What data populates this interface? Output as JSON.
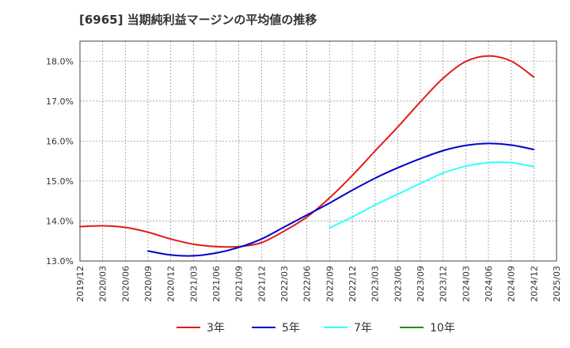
{
  "chart_data": {
    "type": "line",
    "title": "[6965]  当期純利益マージンの平均値の推移",
    "xlabel": "",
    "ylabel": "",
    "ylim": [
      13.0,
      18.5
    ],
    "y_ticks": [
      "13.0%",
      "14.0%",
      "15.0%",
      "16.0%",
      "17.0%",
      "18.0%"
    ],
    "y_tick_values": [
      13.0,
      14.0,
      15.0,
      16.0,
      17.0,
      18.0
    ],
    "x_ticks": [
      "2019/12",
      "2020/03",
      "2020/06",
      "2020/09",
      "2020/12",
      "2021/03",
      "2021/06",
      "2021/09",
      "2021/12",
      "2022/03",
      "2022/06",
      "2022/09",
      "2022/12",
      "2023/03",
      "2023/06",
      "2023/09",
      "2023/12",
      "2024/03",
      "2024/06",
      "2024/09",
      "2024/12",
      "2025/03"
    ],
    "grid": true,
    "legend_position": "bottom",
    "colors": {
      "3年": "#e31a1c",
      "5年": "#0000cc",
      "7年": "#33ffff",
      "10年": "#228b22"
    },
    "series": [
      {
        "name": "3年",
        "color": "#e31a1c",
        "x": [
          "2019/12",
          "2020/03",
          "2020/06",
          "2020/09",
          "2020/12",
          "2021/03",
          "2021/06",
          "2021/09",
          "2021/12",
          "2022/03",
          "2022/06",
          "2022/09",
          "2022/12",
          "2023/03",
          "2023/06",
          "2023/09",
          "2023/12",
          "2024/03",
          "2024/06",
          "2024/09",
          "2024/12"
        ],
        "values": [
          13.86,
          13.88,
          13.84,
          13.72,
          13.55,
          13.42,
          13.36,
          13.36,
          13.46,
          13.75,
          14.1,
          14.58,
          15.14,
          15.75,
          16.35,
          16.98,
          17.57,
          17.99,
          18.13,
          18.0,
          17.6
        ]
      },
      {
        "name": "5年",
        "color": "#0000cc",
        "x": [
          "2020/09",
          "2020/12",
          "2021/03",
          "2021/06",
          "2021/09",
          "2021/12",
          "2022/03",
          "2022/06",
          "2022/09",
          "2022/12",
          "2023/03",
          "2023/06",
          "2023/09",
          "2023/12",
          "2024/03",
          "2024/06",
          "2024/09",
          "2024/12"
        ],
        "values": [
          13.25,
          13.15,
          13.13,
          13.2,
          13.34,
          13.55,
          13.85,
          14.15,
          14.45,
          14.77,
          15.07,
          15.33,
          15.56,
          15.76,
          15.89,
          15.94,
          15.9,
          15.79
        ]
      },
      {
        "name": "7年",
        "color": "#33ffff",
        "x": [
          "2022/09",
          "2022/12",
          "2023/03",
          "2023/06",
          "2023/09",
          "2023/12",
          "2024/03",
          "2024/06",
          "2024/09",
          "2024/12"
        ],
        "values": [
          13.83,
          14.1,
          14.4,
          14.67,
          14.94,
          15.2,
          15.37,
          15.46,
          15.46,
          15.36
        ]
      },
      {
        "name": "10年",
        "color": "#228b22",
        "x": [],
        "values": []
      }
    ]
  }
}
